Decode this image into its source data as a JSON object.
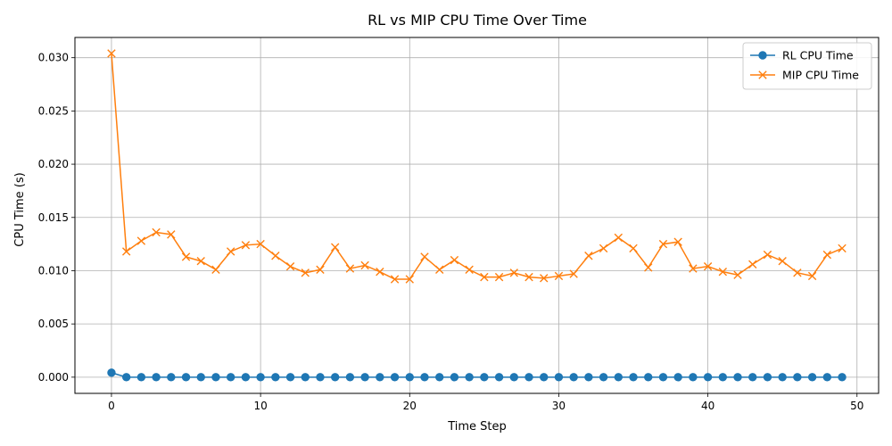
{
  "chart_data": {
    "type": "line",
    "title": "RL vs MIP CPU Time Over Time",
    "xlabel": "Time Step",
    "ylabel": "CPU Time (s)",
    "xlim": [
      -2.45,
      51.45
    ],
    "ylim": [
      -0.00152,
      0.0319
    ],
    "xticks": [
      0,
      10,
      20,
      30,
      40,
      50
    ],
    "yticks": [
      0.0,
      0.005,
      0.01,
      0.015,
      0.02,
      0.025,
      0.03
    ],
    "xtick_labels": [
      "0",
      "10",
      "20",
      "30",
      "40",
      "50"
    ],
    "ytick_labels": [
      "0.000",
      "0.005",
      "0.010",
      "0.015",
      "0.020",
      "0.025",
      "0.030"
    ],
    "grid": true,
    "legend_position": "top-right",
    "x": [
      0,
      1,
      2,
      3,
      4,
      5,
      6,
      7,
      8,
      9,
      10,
      11,
      12,
      13,
      14,
      15,
      16,
      17,
      18,
      19,
      20,
      21,
      22,
      23,
      24,
      25,
      26,
      27,
      28,
      29,
      30,
      31,
      32,
      33,
      34,
      35,
      36,
      37,
      38,
      39,
      40,
      41,
      42,
      43,
      44,
      45,
      46,
      47,
      48,
      49
    ],
    "series": [
      {
        "name": "RL CPU Time",
        "color": "#1f77b4",
        "marker": "circle",
        "values": [
          0.00042,
          0,
          0,
          0,
          0,
          0,
          0,
          0,
          0,
          0,
          0,
          0,
          0,
          0,
          0,
          0,
          0,
          0,
          0,
          0,
          0,
          0,
          0,
          0,
          0,
          0,
          0,
          0,
          0,
          0,
          0,
          0,
          0,
          0,
          0,
          0,
          0,
          0,
          0,
          0,
          0,
          0,
          0,
          0,
          0,
          0,
          0,
          0,
          0,
          0
        ]
      },
      {
        "name": "MIP CPU Time",
        "color": "#ff7f0e",
        "marker": "x",
        "values": [
          0.0304,
          0.0118,
          0.0128,
          0.0136,
          0.0134,
          0.0113,
          0.0109,
          0.0101,
          0.0118,
          0.0124,
          0.0125,
          0.0114,
          0.0104,
          0.0098,
          0.0101,
          0.0122,
          0.0102,
          0.0105,
          0.0099,
          0.0092,
          0.0092,
          0.0113,
          0.0101,
          0.011,
          0.0101,
          0.0094,
          0.0094,
          0.0098,
          0.0094,
          0.0093,
          0.0095,
          0.0097,
          0.0114,
          0.0121,
          0.0131,
          0.0121,
          0.0103,
          0.0125,
          0.0127,
          0.0102,
          0.0104,
          0.0099,
          0.0096,
          0.0106,
          0.0115,
          0.0109,
          0.0098,
          0.0095,
          0.0115,
          0.0121
        ]
      }
    ]
  }
}
